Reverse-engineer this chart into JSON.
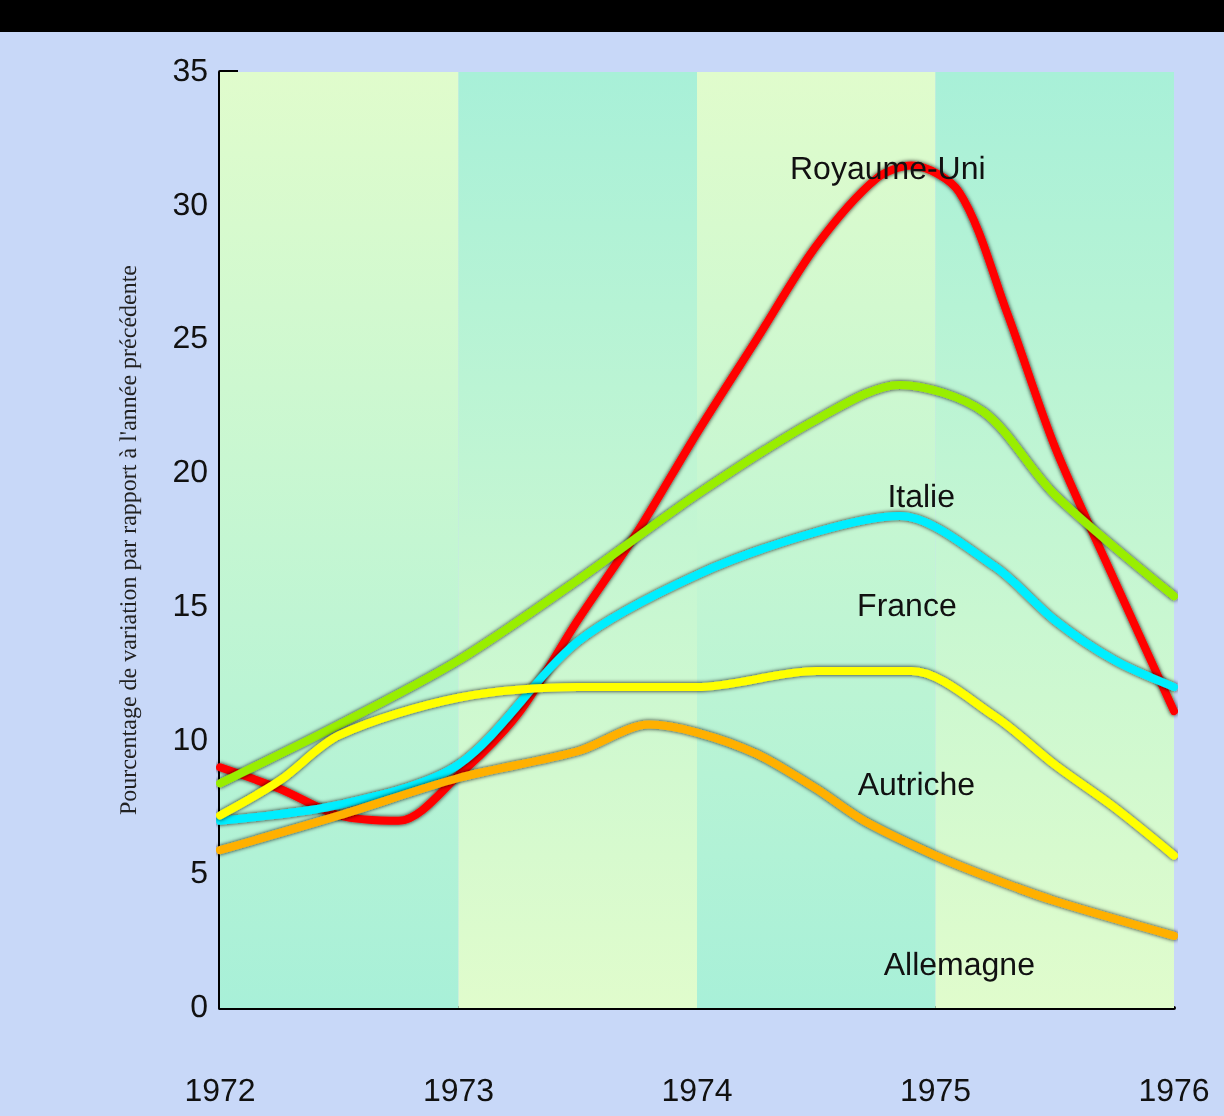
{
  "chart_data": {
    "type": "line",
    "ylabel": "Pourcentage de variation par rapport à l'année précédente",
    "xlim": [
      1972,
      1976
    ],
    "xticks": [
      1972,
      1973,
      1974,
      1975,
      1976
    ],
    "ylim": [
      0,
      35
    ],
    "yticks": [
      0,
      5,
      10,
      15,
      20,
      25,
      30,
      35
    ],
    "marker": "none",
    "bands": [
      {
        "axis": "x",
        "from": 1972,
        "to": 1973,
        "color": "#e0fccc"
      },
      {
        "axis": "x",
        "from": 1973,
        "to": 1974,
        "color": "#a8f0d8"
      },
      {
        "axis": "x",
        "from": 1974,
        "to": 1975,
        "color": "#e0fccc"
      },
      {
        "axis": "x",
        "from": 1975,
        "to": 1976,
        "color": "#a8f0d8"
      }
    ],
    "series": [
      {
        "color": "#ff0000",
        "x": [
          1972,
          1972.25,
          1972.5,
          1972.75,
          1973,
          1973.25,
          1973.5,
          1973.75,
          1974,
          1974.25,
          1974.5,
          1974.75,
          1974.9,
          1975.1,
          1975.3,
          1975.5,
          1975.75,
          1976
        ],
        "values": [
          9.0,
          8.2,
          7.2,
          7.0,
          8.7,
          11,
          14.5,
          17.8,
          21.5,
          25,
          28.5,
          31,
          31.5,
          30.5,
          26,
          21,
          16,
          11.1
        ]
      },
      {
        "color": "#99ee00",
        "x": [
          1972,
          1972.5,
          1973,
          1973.5,
          1974,
          1974.5,
          1974.85,
          1975.2,
          1975.5,
          1976
        ],
        "values": [
          8.4,
          10.6,
          13.0,
          16.0,
          19.2,
          22.0,
          23.3,
          22.3,
          19.2,
          15.4
        ]
      },
      {
        "color": "#00eeff",
        "x": [
          1972,
          1972.5,
          1973,
          1973.5,
          1974,
          1974.5,
          1974.85,
          1975.25,
          1975.5,
          1975.75,
          1976
        ],
        "values": [
          7.0,
          7.6,
          9.1,
          13.7,
          16.2,
          17.8,
          18.4,
          16.5,
          14.5,
          13.0,
          12.0
        ]
      },
      {
        "color": "#ffff00",
        "x": [
          1972,
          1972.25,
          1972.5,
          1973,
          1973.5,
          1974,
          1974.5,
          1974.9,
          1975.25,
          1975.5,
          1975.75,
          1976
        ],
        "values": [
          7.2,
          8.5,
          10.2,
          11.6,
          12.0,
          12.0,
          12.6,
          12.6,
          10.9,
          9.1,
          7.5,
          5.7
        ]
      },
      {
        "color": "#ffb000",
        "x": [
          1972,
          1972.5,
          1973,
          1973.5,
          1973.8,
          1974,
          1974.25,
          1974.5,
          1974.7,
          1975,
          1975.25,
          1975.5,
          1976
        ],
        "values": [
          5.9,
          7.2,
          8.6,
          9.6,
          10.6,
          10.3,
          9.5,
          8.2,
          7.0,
          5.7,
          4.8,
          4.0,
          2.7
        ]
      }
    ],
    "annotations": [
      "Royaume-Uni",
      "Italie",
      "France",
      "Autriche",
      "Allemagne"
    ]
  }
}
